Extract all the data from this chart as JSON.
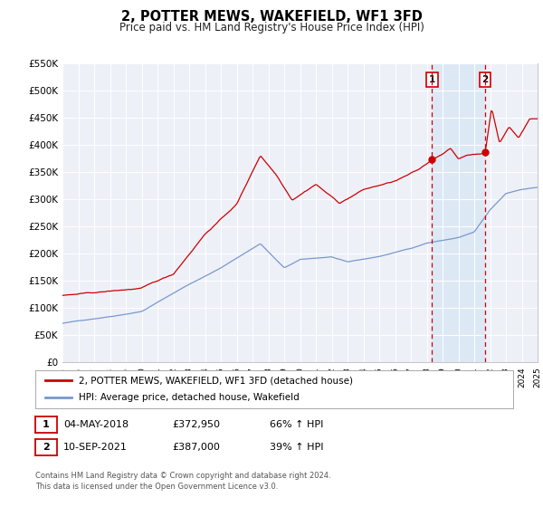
{
  "title": "2, POTTER MEWS, WAKEFIELD, WF1 3FD",
  "subtitle": "Price paid vs. HM Land Registry's House Price Index (HPI)",
  "background_color": "#ffffff",
  "plot_bg_color": "#eef0f8",
  "grid_color": "#ffffff",
  "red_line_color": "#cc0000",
  "blue_line_color": "#7799cc",
  "shade_color": "#dde8f5",
  "vline_color": "#cc0000",
  "ylim": [
    0,
    550000
  ],
  "yticks": [
    0,
    50000,
    100000,
    150000,
    200000,
    250000,
    300000,
    350000,
    400000,
    450000,
    500000,
    550000
  ],
  "ytick_labels": [
    "£0",
    "£50K",
    "£100K",
    "£150K",
    "£200K",
    "£250K",
    "£300K",
    "£350K",
    "£400K",
    "£450K",
    "£500K",
    "£550K"
  ],
  "xlim_start": 1995,
  "xlim_end": 2025,
  "marker1_x": 2018.34,
  "marker1_y": 372950,
  "marker2_x": 2021.69,
  "marker2_y": 387000,
  "vline1_x": 2018.34,
  "vline2_x": 2021.69,
  "legend_label_red": "2, POTTER MEWS, WAKEFIELD, WF1 3FD (detached house)",
  "legend_label_blue": "HPI: Average price, detached house, Wakefield",
  "table_row1": [
    "1",
    "04-MAY-2018",
    "£372,950",
    "66% ↑ HPI"
  ],
  "table_row2": [
    "2",
    "10-SEP-2021",
    "£387,000",
    "39% ↑ HPI"
  ],
  "footer_text": "Contains HM Land Registry data © Crown copyright and database right 2024.\nThis data is licensed under the Open Government Licence v3.0."
}
